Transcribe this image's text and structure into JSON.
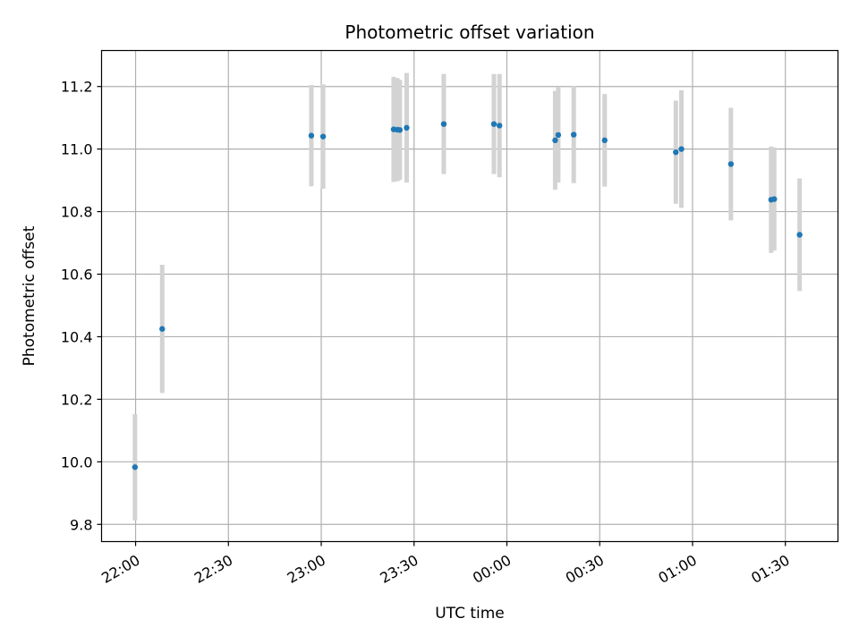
{
  "chart_data": {
    "type": "scatter",
    "title": "Photometric offset variation",
    "xlabel": "UTC time",
    "ylabel": "Photometric offset",
    "x_tick_labels": [
      "22:00",
      "22:30",
      "23:00",
      "23:30",
      "00:00",
      "00:30",
      "01:00",
      "01:30"
    ],
    "y_tick_labels": [
      "9.8",
      "10.0",
      "10.2",
      "10.4",
      "10.6",
      "10.8",
      "11.0",
      "11.2"
    ],
    "xlim": [
      "21:49",
      "01:47"
    ],
    "ylim": [
      9.745,
      11.315
    ],
    "grid": true,
    "colors": {
      "point": "#1f77b4",
      "errorbar": "#d3d3d3",
      "grid": "#b0b0b0"
    },
    "points": [
      {
        "t": "21:59:48",
        "y": 9.983,
        "err": 0.17
      },
      {
        "t": "22:08:36",
        "y": 10.425,
        "err": 0.205
      },
      {
        "t": "22:56:48",
        "y": 11.043,
        "err": 0.162
      },
      {
        "t": "23:00:36",
        "y": 11.04,
        "err": 0.167
      },
      {
        "t": "23:23:24",
        "y": 11.063,
        "err": 0.168
      },
      {
        "t": "23:24:36",
        "y": 11.062,
        "err": 0.165
      },
      {
        "t": "23:25:24",
        "y": 11.061,
        "err": 0.16
      },
      {
        "t": "23:27:36",
        "y": 11.068,
        "err": 0.175
      },
      {
        "t": "23:39:36",
        "y": 11.08,
        "err": 0.16
      },
      {
        "t": "23:55:48",
        "y": 11.08,
        "err": 0.16
      },
      {
        "t": "23:57:36",
        "y": 11.075,
        "err": 0.165
      },
      {
        "t": "00:15:36",
        "y": 11.028,
        "err": 0.158
      },
      {
        "t": "00:16:36",
        "y": 11.045,
        "err": 0.152
      },
      {
        "t": "00:21:36",
        "y": 11.046,
        "err": 0.155
      },
      {
        "t": "00:31:36",
        "y": 11.028,
        "err": 0.148
      },
      {
        "t": "00:54:36",
        "y": 10.99,
        "err": 0.165
      },
      {
        "t": "00:56:24",
        "y": 11.0,
        "err": 0.188
      },
      {
        "t": "01:12:24",
        "y": 10.952,
        "err": 0.18
      },
      {
        "t": "01:25:24",
        "y": 10.838,
        "err": 0.17
      },
      {
        "t": "01:26:24",
        "y": 10.84,
        "err": 0.165
      },
      {
        "t": "01:34:36",
        "y": 10.726,
        "err": 0.18
      }
    ]
  }
}
